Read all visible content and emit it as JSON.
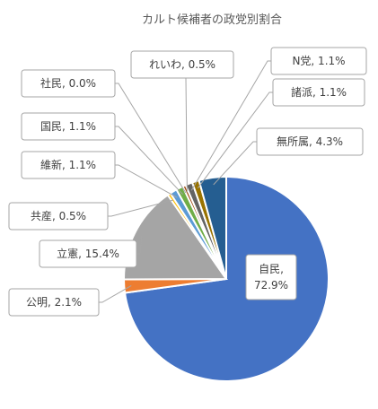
{
  "chart_data": {
    "type": "pie",
    "title": "カルト候補者の政党別割合",
    "start_angle_deg": 0,
    "direction": "clockwise",
    "slices": [
      {
        "name": "自民",
        "value": 72.9,
        "label": "自民,\n72.9%",
        "color": "#4472C4"
      },
      {
        "name": "公明",
        "value": 2.1,
        "label": "公明, 2.1%",
        "color": "#ED7D31"
      },
      {
        "name": "立憲",
        "value": 15.4,
        "label": "立憲, 15.4%",
        "color": "#A5A5A5"
      },
      {
        "name": "共産",
        "value": 0.5,
        "label": "共産, 0.5%",
        "color": "#FFC000"
      },
      {
        "name": "維新",
        "value": 1.1,
        "label": "維新, 1.1%",
        "color": "#5B9BD5"
      },
      {
        "name": "国民",
        "value": 1.1,
        "label": "国民, 1.1%",
        "color": "#70AD47"
      },
      {
        "name": "社民",
        "value": 0.0,
        "label": "社民, 0.0%",
        "color": "#264478"
      },
      {
        "name": "れいわ",
        "value": 0.5,
        "label": "れいわ, 0.5%",
        "color": "#9E480E"
      },
      {
        "name": "N党",
        "value": 1.1,
        "label": "N党, 1.1%",
        "color": "#636363"
      },
      {
        "name": "諸派",
        "value": 1.1,
        "label": "諸派, 1.1%",
        "color": "#997300"
      },
      {
        "name": "無所属",
        "value": 4.3,
        "label": "無所属, 4.3%",
        "color": "#255E91"
      }
    ]
  }
}
